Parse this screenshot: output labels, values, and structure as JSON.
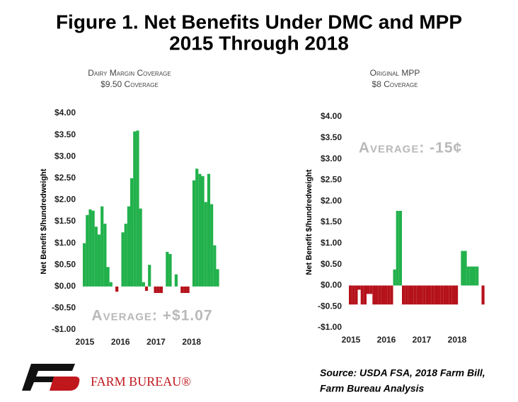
{
  "title": [
    "Figure 1. Net Benefits Under DMC and MPP",
    "2015 Through 2018"
  ],
  "source": [
    "Source: USDA FSA, 2018 Farm Bill,",
    "Farm Bureau Analysis"
  ],
  "logo_text": "FARM BUREAU®",
  "chart_data": [
    {
      "type": "bar",
      "subtitle": [
        "Dairy Margin Coverage",
        "$9.50 Coverage"
      ],
      "y_label": "Net Benefit $/hundredweight",
      "annotation": "Average: +$1.07",
      "positive_color": "#22b14c",
      "negative_color": "#b5121b",
      "categories": [
        "2015",
        null,
        null,
        null,
        null,
        null,
        null,
        null,
        null,
        null,
        null,
        null,
        "2016",
        null,
        null,
        null,
        null,
        null,
        null,
        null,
        null,
        null,
        null,
        null,
        "2017",
        null,
        null,
        null,
        null,
        null,
        null,
        null,
        null,
        null,
        null,
        null,
        "2018",
        null,
        null,
        null,
        null,
        null,
        null,
        null,
        null,
        null,
        null,
        null
      ],
      "values": [
        1.0,
        1.65,
        1.78,
        1.75,
        1.38,
        1.2,
        1.85,
        1.45,
        0.45,
        0.1,
        0,
        -0.12,
        0,
        1.25,
        1.45,
        1.85,
        2.5,
        3.58,
        3.6,
        1.8,
        0.1,
        -0.1,
        0.5,
        0,
        -0.15,
        -0.15,
        -0.15,
        0,
        0.8,
        0.75,
        0,
        0.28,
        0,
        -0.15,
        -0.15,
        -0.15,
        0,
        2.45,
        2.72,
        2.6,
        2.55,
        1.95,
        2.6,
        1.9,
        0.95,
        0.4,
        null,
        null
      ],
      "ylim": [
        -1,
        4
      ],
      "yticks": [
        {
          "value": 4,
          "label": "$4.00"
        },
        {
          "value": 3.5,
          "label": "$3.50"
        },
        {
          "value": 3,
          "label": "$3.00"
        },
        {
          "value": 2.5,
          "label": "$2.50"
        },
        {
          "value": 2,
          "label": "$2.00"
        },
        {
          "value": 1.5,
          "label": "$1.50"
        },
        {
          "value": 1,
          "label": "$1.00"
        },
        {
          "value": 0.5,
          "label": "$0.50"
        },
        {
          "value": 0,
          "label": "$0.00"
        },
        {
          "value": -0.5,
          "label": "-$0.50"
        },
        {
          "value": -1,
          "label": "-$1.00"
        }
      ]
    },
    {
      "type": "bar",
      "subtitle": [
        "Original MPP",
        "$8 Coverage"
      ],
      "y_label": "Net Benefit $/hundredweight",
      "annotation": "Average: -15¢",
      "positive_color": "#22b14c",
      "negative_color": "#b5121b",
      "categories": [
        "2015",
        null,
        null,
        null,
        null,
        null,
        null,
        null,
        null,
        null,
        null,
        null,
        "2016",
        null,
        null,
        null,
        null,
        null,
        null,
        null,
        null,
        null,
        null,
        null,
        "2017",
        null,
        null,
        null,
        null,
        null,
        null,
        null,
        null,
        null,
        null,
        null,
        "2018",
        null,
        null,
        null,
        null,
        null,
        null,
        null,
        null,
        null,
        null,
        null
      ],
      "values": [
        -0.45,
        -0.45,
        -0.45,
        -0.1,
        -0.45,
        -0.45,
        -0.2,
        -0.2,
        -0.45,
        -0.45,
        -0.45,
        -0.45,
        -0.45,
        -0.45,
        -0.45,
        0.38,
        1.77,
        1.77,
        -0.45,
        -0.45,
        -0.45,
        -0.45,
        -0.45,
        -0.45,
        -0.45,
        -0.45,
        -0.45,
        -0.45,
        -0.45,
        -0.45,
        -0.45,
        -0.45,
        -0.45,
        -0.45,
        -0.45,
        -0.45,
        -0.45,
        0,
        0.82,
        0.82,
        0.45,
        0.45,
        0.45,
        0.45,
        0,
        -0.45,
        null,
        null
      ],
      "ylim": [
        -1,
        4
      ],
      "yticks": [
        {
          "value": 4,
          "label": "$4.00"
        },
        {
          "value": 3.5,
          "label": "$3.50"
        },
        {
          "value": 3,
          "label": "$3.00"
        },
        {
          "value": 2.5,
          "label": "$2.50"
        },
        {
          "value": 2,
          "label": "$2.00"
        },
        {
          "value": 1.5,
          "label": "$1.50"
        },
        {
          "value": 1,
          "label": "$1.00"
        },
        {
          "value": 0.5,
          "label": "$0.50"
        },
        {
          "value": 0,
          "label": "$0.00"
        },
        {
          "value": -0.5,
          "label": "-$0.50"
        },
        {
          "value": -1,
          "label": "-$1.00"
        }
      ]
    }
  ]
}
